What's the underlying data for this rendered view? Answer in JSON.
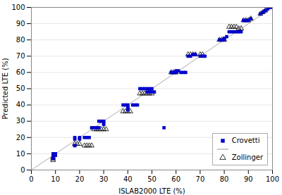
{
  "chart_data": {
    "type": "scatter",
    "xlabel": "ISLAB2000 LTE (%)",
    "ylabel": "Predicted LTE (%)",
    "xlim": [
      0,
      100
    ],
    "ylim": [
      0,
      100
    ],
    "xticks": [
      0,
      10,
      20,
      30,
      40,
      50,
      60,
      70,
      80,
      90,
      100
    ],
    "yticks": [
      0,
      10,
      20,
      30,
      40,
      50,
      60,
      70,
      80,
      90,
      100
    ],
    "grid": "y",
    "legend": "lower right",
    "series": [
      {
        "name": "Crovetti",
        "type": "scatter",
        "marker": "square",
        "color": "#0000cc",
        "x": [
          9,
          9,
          9,
          9,
          10,
          10,
          18,
          18,
          18,
          18,
          20,
          20,
          22,
          23,
          24,
          25,
          26,
          27,
          28,
          28,
          29,
          30,
          30,
          30,
          38,
          39,
          40,
          40,
          40,
          40,
          42,
          43,
          44,
          45,
          46,
          47,
          48,
          49,
          50,
          48,
          49,
          50,
          51,
          55,
          58,
          59,
          60,
          60,
          61,
          62,
          63,
          64,
          65,
          66,
          67,
          68,
          70,
          71,
          72,
          78,
          79,
          80,
          80,
          81,
          82,
          83,
          84,
          85,
          86,
          87,
          88,
          89,
          90,
          91,
          95,
          96,
          97,
          98,
          99
        ],
        "values": [
          10,
          9,
          8,
          7,
          10,
          9,
          20,
          19,
          15,
          15,
          20,
          19,
          20,
          20,
          20,
          26,
          26,
          26,
          26,
          30,
          30,
          30,
          29,
          28,
          40,
          40,
          40,
          39,
          38,
          37,
          40,
          40,
          40,
          50,
          50,
          50,
          50,
          50,
          50,
          48,
          48,
          48,
          48,
          26,
          60,
          60,
          60,
          61,
          61,
          60,
          60,
          60,
          70,
          70,
          71,
          71,
          70,
          70,
          70,
          80,
          80,
          80,
          81,
          82,
          85,
          85,
          85,
          85,
          85,
          85,
          92,
          92,
          92,
          93,
          96,
          97,
          98,
          99,
          100
        ]
      },
      {
        "type": "line",
        "line_style": "solid",
        "color": "#aaaaaa",
        "x": [
          0,
          100
        ],
        "values": [
          0,
          100
        ]
      },
      {
        "name": "Zollinger",
        "type": "scatter",
        "marker": "triangle_open",
        "color": "#000000",
        "x": [
          9,
          9,
          9,
          18,
          19,
          20,
          22,
          23,
          24,
          25,
          26,
          27,
          28,
          29,
          30,
          31,
          38,
          39,
          40,
          41,
          45,
          46,
          47,
          48,
          49,
          50,
          58,
          59,
          60,
          65,
          66,
          67,
          68,
          70,
          71,
          78,
          79,
          80,
          82,
          83,
          84,
          85,
          86,
          87,
          88,
          89,
          90,
          91,
          95,
          96,
          97,
          99
        ],
        "values": [
          8,
          7,
          6,
          16,
          16,
          16,
          15,
          15,
          15,
          15,
          25,
          25,
          25,
          25,
          25,
          25,
          36,
          36,
          36,
          36,
          47,
          47,
          47,
          47,
          47,
          47,
          60,
          60,
          60,
          71,
          71,
          71,
          71,
          71,
          71,
          80,
          80,
          80,
          88,
          88,
          88,
          88,
          87,
          87,
          92,
          92,
          92,
          93,
          96,
          97,
          98,
          100
        ]
      }
    ]
  }
}
